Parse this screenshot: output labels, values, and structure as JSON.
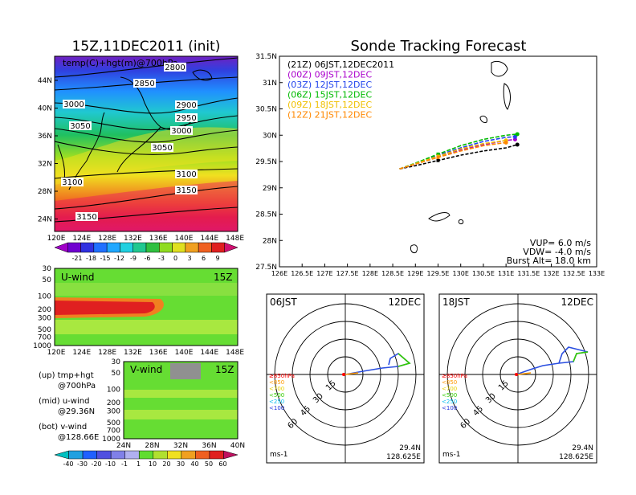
{
  "left_title": "15Z,11DEC2011 (init)",
  "right_title": "Sonde Tracking Forecast",
  "map_panel": {
    "overlay_label": "temp(C)+hgt(m)@700hPa",
    "lat_ticks": [
      "44N",
      "40N",
      "36N",
      "32N",
      "28N",
      "24N"
    ],
    "lon_ticks": [
      "120E",
      "124E",
      "128E",
      "132E",
      "136E",
      "140E",
      "144E",
      "148E"
    ],
    "contour_labels": [
      "2800",
      "2850",
      "3000",
      "2900",
      "2950",
      "3050",
      "3000",
      "3050",
      "3100",
      "3100",
      "3150",
      "3150"
    ],
    "colorbar_labels": [
      "-21",
      "-18",
      "-15",
      "-12",
      "-9",
      "-6",
      "-3",
      "0",
      "3",
      "6",
      "9"
    ]
  },
  "u_panel": {
    "label": "U-wind",
    "time": "15Z",
    "y_ticks": [
      "30",
      "50",
      "100",
      "200",
      "300",
      "500",
      "700",
      "1000"
    ],
    "x_ticks": [
      "120E",
      "124E",
      "128E",
      "132E",
      "136E",
      "140E",
      "144E",
      "148E"
    ]
  },
  "v_panel": {
    "label": "V-wind",
    "time": "15Z",
    "y_ticks": [
      "30",
      "50",
      "100",
      "200",
      "300",
      "500",
      "700",
      "1000"
    ],
    "x_ticks": [
      "24N",
      "28N",
      "32N",
      "36N",
      "40N"
    ]
  },
  "legend_notes": [
    {
      "a": "(up)  tmp+hgt",
      "b": "@700hPa"
    },
    {
      "a": "(mid)  u-wind",
      "b": "@29.36N"
    },
    {
      "a": "(bot)  v-wind",
      "b": "@128.66E"
    }
  ],
  "wind_colorbar_labels": [
    "-40",
    "-30",
    "-20",
    "-10",
    "-1",
    "1",
    "10",
    "20",
    "30",
    "40",
    "50",
    "60"
  ],
  "chart_data": {
    "type": "line",
    "title": "Sonde Tracking Forecast",
    "xlim": [
      126,
      133
    ],
    "ylim": [
      27.5,
      31.5
    ],
    "x_ticks": [
      "126E",
      "126.5E",
      "127E",
      "127.5E",
      "128E",
      "128.5E",
      "129E",
      "129.5E",
      "130E",
      "130.5E",
      "131E",
      "131.5E",
      "132E",
      "132.5E",
      "133E"
    ],
    "y_ticks": [
      "27.5N",
      "28N",
      "28.5N",
      "29N",
      "29.5N",
      "30N",
      "30.5N",
      "31N",
      "31.5N"
    ],
    "series": [
      {
        "name": "(21Z)  06JST,12DEC2011",
        "color": "#000000",
        "lon": [
          128.65,
          129.0,
          129.5,
          130.0,
          130.5,
          131.0,
          131.25
        ],
        "lat": [
          29.36,
          29.42,
          29.52,
          29.62,
          29.7,
          29.76,
          29.82
        ]
      },
      {
        "name": "(00Z)  09JST,12DEC",
        "color": "#aa00cc",
        "lon": [
          128.65,
          129.0,
          129.5,
          130.0,
          130.5,
          131.0,
          131.2
        ],
        "lat": [
          29.36,
          29.45,
          29.6,
          29.72,
          29.82,
          29.9,
          29.92
        ]
      },
      {
        "name": "(03Z)  12JST,12DEC",
        "color": "#2244ee",
        "lon": [
          128.65,
          129.0,
          129.5,
          130.0,
          130.5,
          131.0,
          131.2
        ],
        "lat": [
          29.36,
          29.46,
          29.62,
          29.76,
          29.88,
          29.96,
          29.97
        ]
      },
      {
        "name": "(06Z)  15JST,12DEC",
        "color": "#00bb00",
        "lon": [
          128.65,
          129.0,
          129.5,
          130.0,
          130.5,
          131.0,
          131.25
        ],
        "lat": [
          29.36,
          29.47,
          29.64,
          29.8,
          29.92,
          30.0,
          30.02
        ]
      },
      {
        "name": "(09Z)  18JST,12DEC",
        "color": "#f0c000",
        "lon": [
          128.65,
          129.0,
          129.5,
          130.0,
          130.5,
          131.0
        ],
        "lat": [
          29.36,
          29.46,
          29.6,
          29.74,
          29.84,
          29.9
        ]
      },
      {
        "name": "(12Z)  21JST,12DEC",
        "color": "#ff8800",
        "lon": [
          128.65,
          129.0,
          129.5,
          130.0,
          130.5,
          131.0
        ],
        "lat": [
          29.36,
          29.45,
          29.58,
          29.7,
          29.8,
          29.86
        ]
      }
    ],
    "info": [
      "VUP=  6.0  m/s",
      "VDW= -4.0  m/s",
      "Burst Alt=  18.0  km"
    ]
  },
  "hodographs": [
    {
      "time": "06JST",
      "date": "12DEC",
      "lat": "29.4N",
      "lon": "128.625E",
      "unit": "ms-1"
    },
    {
      "time": "18JST",
      "date": "12DEC",
      "lat": "29.4N",
      "lon": "128.625E",
      "unit": "ms-1"
    }
  ],
  "ring_labels": [
    "15",
    "30",
    "45",
    "60"
  ],
  "pressure_legend": [
    {
      "label": "≥850hPa",
      "color": "#ff0000"
    },
    {
      "label": "<850",
      "color": "#ff9900"
    },
    {
      "label": "<700",
      "color": "#e8d000"
    },
    {
      "label": "<500",
      "color": "#33cc00"
    },
    {
      "label": "<250",
      "color": "#00bbee"
    },
    {
      "label": "<100",
      "color": "#2233dd"
    }
  ]
}
